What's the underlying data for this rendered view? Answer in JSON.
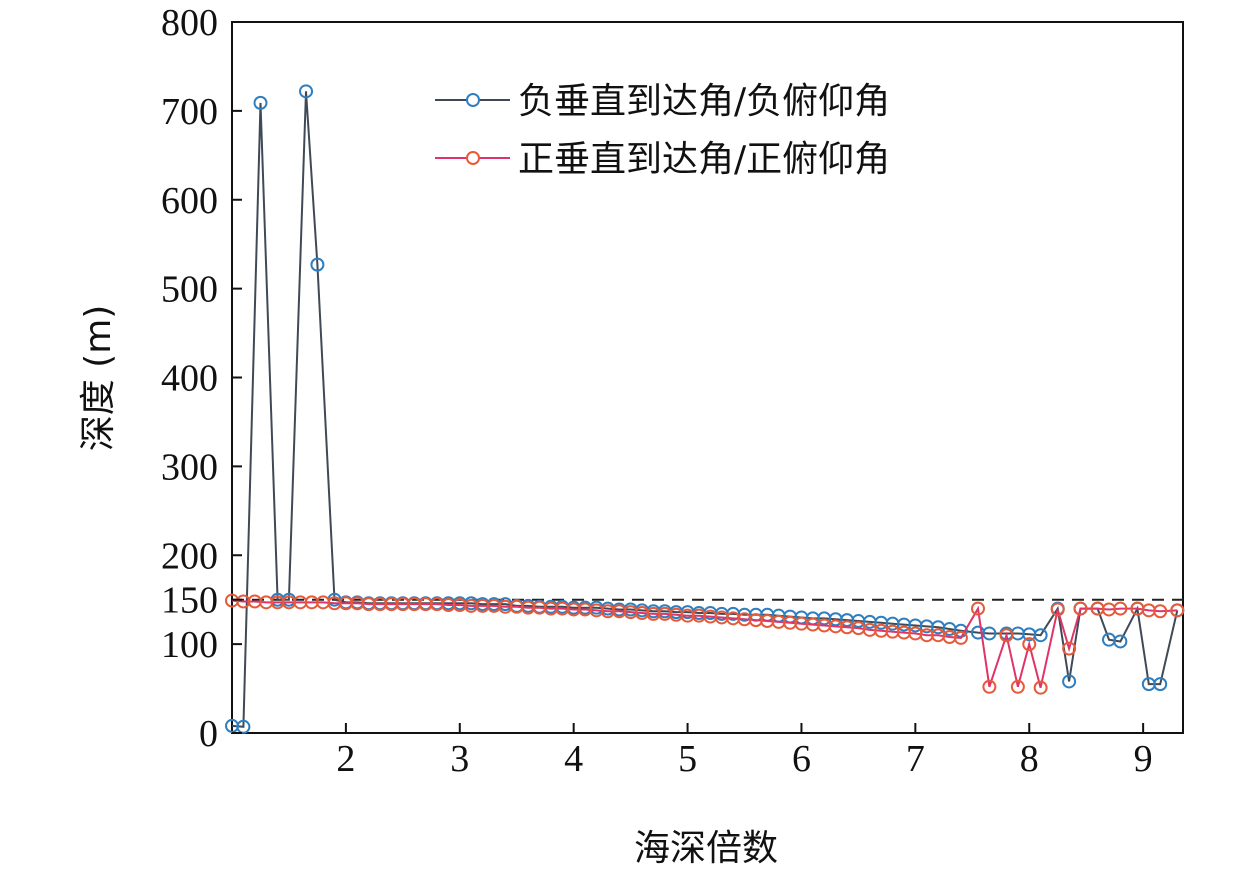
{
  "chart_data": {
    "type": "line",
    "title": "",
    "xlabel": "海深倍数",
    "ylabel": "深度 (m)",
    "xlim": [
      1.0,
      9.35
    ],
    "ylim": [
      0,
      800
    ],
    "xticks": [
      2,
      3,
      4,
      5,
      6,
      7,
      8,
      9
    ],
    "yticks": [
      0,
      100,
      150,
      200,
      300,
      400,
      500,
      600,
      700,
      800
    ],
    "reference_line": {
      "y": 150,
      "style": "dashed",
      "color": "#222222"
    },
    "grid": false,
    "legend_position": "top-right",
    "series": [
      {
        "name": "负垂直到达角/负俯仰角",
        "line_color": "#404a56",
        "marker_color": "#2f7fc0",
        "x": [
          1.0,
          1.1,
          1.25,
          1.4,
          1.5,
          1.65,
          1.75,
          1.9,
          2.0,
          2.1,
          2.2,
          2.3,
          2.4,
          2.5,
          2.6,
          2.7,
          2.8,
          2.9,
          3.0,
          3.1,
          3.2,
          3.3,
          3.4,
          3.5,
          3.6,
          3.7,
          3.8,
          3.9,
          4.0,
          4.1,
          4.2,
          4.3,
          4.4,
          4.5,
          4.6,
          4.7,
          4.8,
          4.9,
          5.0,
          5.1,
          5.2,
          5.3,
          5.4,
          5.5,
          5.6,
          5.7,
          5.8,
          5.9,
          6.0,
          6.1,
          6.2,
          6.3,
          6.4,
          6.5,
          6.6,
          6.7,
          6.8,
          6.9,
          7.0,
          7.1,
          7.2,
          7.3,
          7.4,
          7.55,
          7.65,
          7.8,
          7.9,
          8.0,
          8.1,
          8.25,
          8.35,
          8.45,
          8.6,
          8.7,
          8.8,
          8.95,
          9.05,
          9.15,
          9.3
        ],
        "y": [
          8,
          7,
          709,
          150,
          150,
          722,
          527,
          150,
          147,
          147,
          146,
          146,
          146,
          146,
          146,
          146,
          146,
          146,
          146,
          146,
          145,
          145,
          145,
          143,
          143,
          142,
          142,
          142,
          141,
          141,
          141,
          140,
          139,
          139,
          138,
          137,
          137,
          136,
          136,
          135,
          135,
          134,
          134,
          133,
          133,
          133,
          132,
          131,
          130,
          129,
          129,
          128,
          127,
          126,
          125,
          124,
          123,
          122,
          121,
          120,
          119,
          117,
          115,
          113,
          112,
          112,
          112,
          111,
          110,
          140,
          58,
          140,
          140,
          105,
          103,
          140,
          55,
          55,
          138
        ]
      },
      {
        "name": "正垂直到达角/正俯仰角",
        "line_color": "#e0336a",
        "marker_color": "#e65a3a",
        "x": [
          1.0,
          1.1,
          1.2,
          1.3,
          1.4,
          1.5,
          1.6,
          1.7,
          1.8,
          1.9,
          2.0,
          2.1,
          2.2,
          2.3,
          2.4,
          2.5,
          2.6,
          2.7,
          2.8,
          2.9,
          3.0,
          3.1,
          3.2,
          3.3,
          3.4,
          3.5,
          3.6,
          3.7,
          3.8,
          3.9,
          4.0,
          4.1,
          4.2,
          4.3,
          4.4,
          4.5,
          4.6,
          4.7,
          4.8,
          4.9,
          5.0,
          5.1,
          5.2,
          5.3,
          5.4,
          5.5,
          5.6,
          5.7,
          5.8,
          5.9,
          6.0,
          6.1,
          6.2,
          6.3,
          6.4,
          6.5,
          6.6,
          6.7,
          6.8,
          6.9,
          7.0,
          7.1,
          7.2,
          7.3,
          7.4,
          7.55,
          7.65,
          7.8,
          7.9,
          8.0,
          8.1,
          8.25,
          8.35,
          8.45,
          8.6,
          8.7,
          8.8,
          8.95,
          9.05,
          9.15,
          9.3
        ],
        "y": [
          149,
          148,
          148,
          147,
          147,
          147,
          147,
          147,
          147,
          146,
          146,
          146,
          145,
          145,
          145,
          145,
          145,
          145,
          145,
          144,
          144,
          143,
          143,
          143,
          142,
          142,
          141,
          141,
          140,
          140,
          139,
          139,
          138,
          137,
          137,
          136,
          135,
          134,
          134,
          133,
          132,
          132,
          131,
          130,
          129,
          128,
          127,
          126,
          125,
          124,
          123,
          122,
          121,
          120,
          119,
          118,
          116,
          115,
          114,
          113,
          112,
          110,
          110,
          108,
          107,
          140,
          52,
          110,
          52,
          100,
          51,
          139,
          95,
          140,
          140,
          139,
          140,
          140,
          138,
          137,
          138
        ]
      }
    ]
  }
}
